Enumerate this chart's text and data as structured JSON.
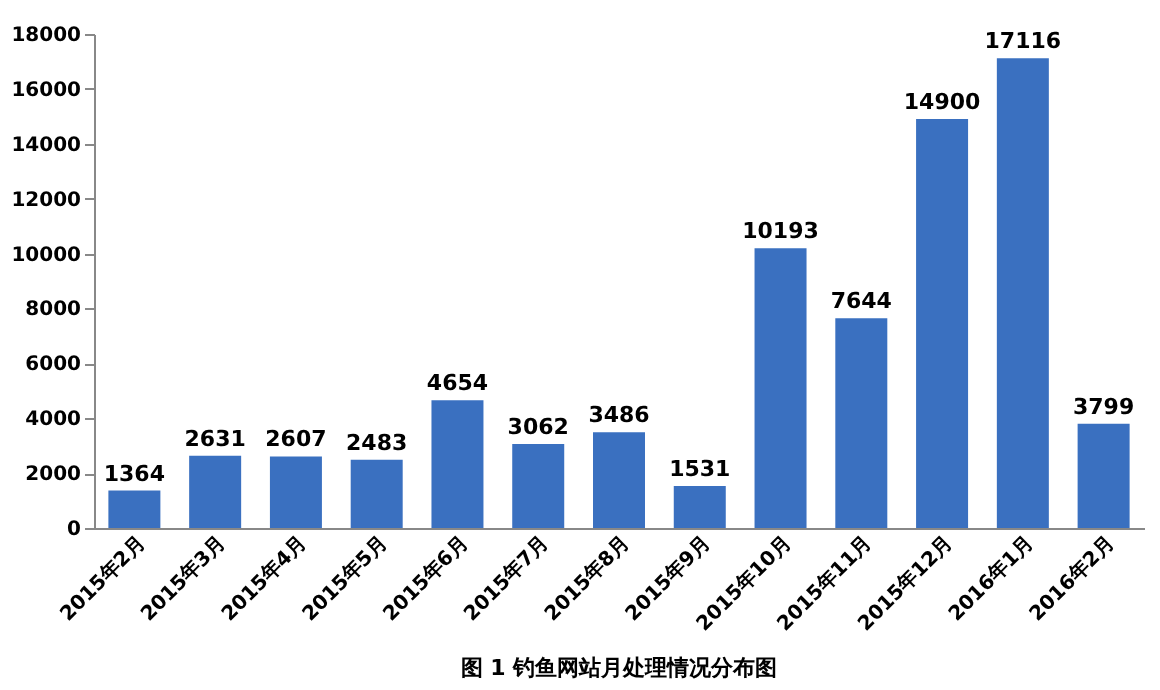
{
  "chart_data": {
    "type": "bar",
    "title": "图 1  钓鱼网站月处理情况分布图",
    "categories": [
      "2015年2月",
      "2015年3月",
      "2015年4月",
      "2015年5月",
      "2015年6月",
      "2015年7月",
      "2015年8月",
      "2015年9月",
      "2015年10月",
      "2015年11月",
      "2015年12月",
      "2016年1月",
      "2016年2月"
    ],
    "values": [
      1364,
      2631,
      2607,
      2483,
      4654,
      3062,
      3486,
      1531,
      10193,
      7644,
      14900,
      17116,
      3799
    ],
    "color": "#3a70c0",
    "ylim": [
      0,
      18000
    ],
    "yticks": [
      0,
      2000,
      4000,
      6000,
      8000,
      10000,
      12000,
      14000,
      16000,
      18000
    ],
    "data_labels": true,
    "grid": false
  }
}
